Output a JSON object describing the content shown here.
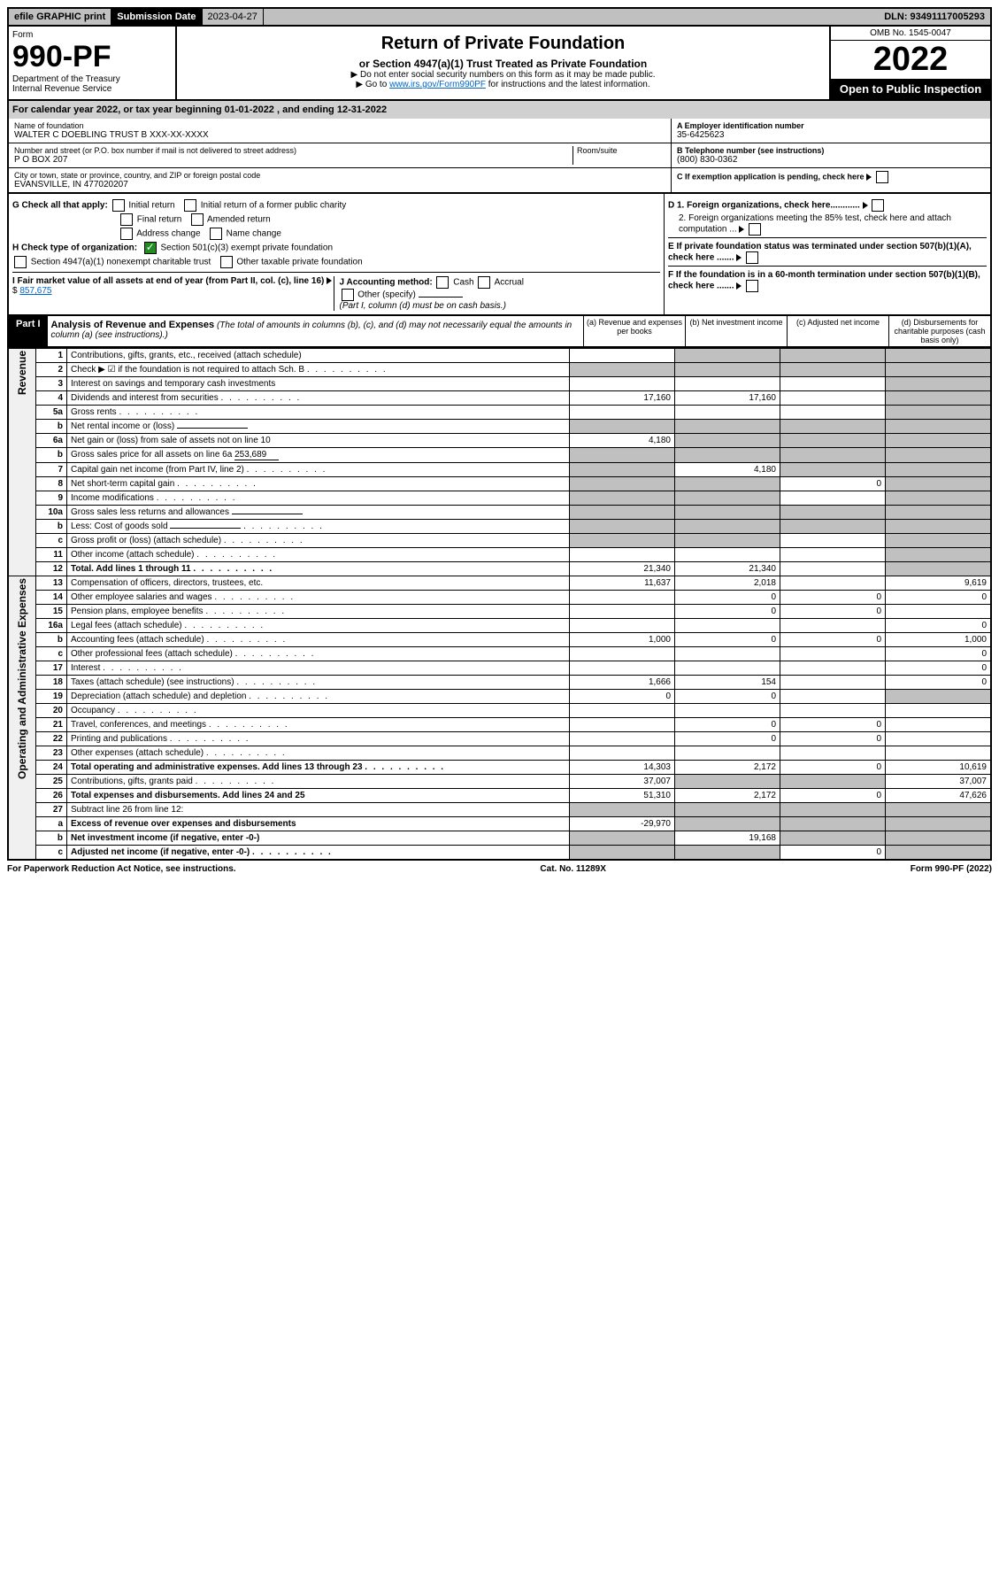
{
  "topbar": {
    "efile": "efile GRAPHIC print",
    "subdate_label": "Submission Date",
    "subdate": "2023-04-27",
    "dln": "DLN: 93491117005293"
  },
  "header": {
    "form_label": "Form",
    "form_no": "990-PF",
    "dept": "Department of the Treasury",
    "irs": "Internal Revenue Service",
    "title": "Return of Private Foundation",
    "subtitle": "or Section 4947(a)(1) Trust Treated as Private Foundation",
    "instr1": "▶ Do not enter social security numbers on this form as it may be made public.",
    "instr2_pre": "▶ Go to ",
    "instr2_link": "www.irs.gov/Form990PF",
    "instr2_post": " for instructions and the latest information.",
    "omb": "OMB No. 1545-0047",
    "year": "2022",
    "open": "Open to Public Inspection"
  },
  "calyear": {
    "text_pre": "For calendar year 2022, or tax year beginning ",
    "begin": "01-01-2022",
    "text_mid": " , and ending ",
    "end": "12-31-2022"
  },
  "info": {
    "name_label": "Name of foundation",
    "name": "WALTER C DOEBLING TRUST B XXX-XX-XXXX",
    "addr_label": "Number and street (or P.O. box number if mail is not delivered to street address)",
    "addr": "P O BOX 207",
    "room_label": "Room/suite",
    "city_label": "City or town, state or province, country, and ZIP or foreign postal code",
    "city": "EVANSVILLE, IN  477020207",
    "ein_label": "A Employer identification number",
    "ein": "35-6425623",
    "tel_label": "B Telephone number (see instructions)",
    "tel": "(800) 830-0362",
    "c_label": "C If exemption application is pending, check here"
  },
  "checks": {
    "g_label": "G Check all that apply:",
    "g_items": [
      "Initial return",
      "Initial return of a former public charity",
      "Final return",
      "Amended return",
      "Address change",
      "Name change"
    ],
    "h_label": "H Check type of organization:",
    "h1": "Section 501(c)(3) exempt private foundation",
    "h2": "Section 4947(a)(1) nonexempt charitable trust",
    "h3": "Other taxable private foundation",
    "i_label": "I Fair market value of all assets at end of year (from Part II, col. (c), line 16)",
    "i_val": "857,675",
    "j_label": "J Accounting method:",
    "j_cash": "Cash",
    "j_accrual": "Accrual",
    "j_other": "Other (specify)",
    "j_note": "(Part I, column (d) must be on cash basis.)",
    "d1": "D 1. Foreign organizations, check here............",
    "d2": "2. Foreign organizations meeting the 85% test, check here and attach computation ...",
    "e": "E If private foundation status was terminated under section 507(b)(1)(A), check here .......",
    "f": "F If the foundation is in a 60-month termination under section 507(b)(1)(B), check here ......."
  },
  "part1": {
    "label": "Part I",
    "title": "Analysis of Revenue and Expenses",
    "note": "(The total of amounts in columns (b), (c), and (d) may not necessarily equal the amounts in column (a) (see instructions).)",
    "cols": {
      "a": "(a) Revenue and expenses per books",
      "b": "(b) Net investment income",
      "c": "(c) Adjusted net income",
      "d": "(d) Disbursements for charitable purposes (cash basis only)"
    }
  },
  "sections": {
    "revenue": "Revenue",
    "operating": "Operating and Administrative Expenses"
  },
  "rows": [
    {
      "n": "1",
      "desc": "Contributions, gifts, grants, etc., received (attach schedule)",
      "a": "",
      "b": "shade",
      "c": "shade",
      "d": "shade"
    },
    {
      "n": "2",
      "desc": "Check ▶ ☑ if the foundation is not required to attach Sch. B",
      "a": "shade",
      "b": "shade",
      "c": "shade",
      "d": "shade",
      "dots": true
    },
    {
      "n": "3",
      "desc": "Interest on savings and temporary cash investments",
      "a": "",
      "b": "",
      "c": "",
      "d": "shade"
    },
    {
      "n": "4",
      "desc": "Dividends and interest from securities",
      "a": "17,160",
      "b": "17,160",
      "c": "",
      "d": "shade",
      "dots": true
    },
    {
      "n": "5a",
      "desc": "Gross rents",
      "a": "",
      "b": "",
      "c": "",
      "d": "shade",
      "dots": true
    },
    {
      "n": "b",
      "desc": "Net rental income or (loss)",
      "a": "shade",
      "b": "shade",
      "c": "shade",
      "d": "shade",
      "inline": true
    },
    {
      "n": "6a",
      "desc": "Net gain or (loss) from sale of assets not on line 10",
      "a": "4,180",
      "b": "shade",
      "c": "shade",
      "d": "shade"
    },
    {
      "n": "b",
      "desc": "Gross sales price for all assets on line 6a",
      "a": "shade",
      "b": "shade",
      "c": "shade",
      "d": "shade",
      "inline_val": "253,689"
    },
    {
      "n": "7",
      "desc": "Capital gain net income (from Part IV, line 2)",
      "a": "shade",
      "b": "4,180",
      "c": "shade",
      "d": "shade",
      "dots": true
    },
    {
      "n": "8",
      "desc": "Net short-term capital gain",
      "a": "shade",
      "b": "shade",
      "c": "0",
      "d": "shade",
      "dots": true
    },
    {
      "n": "9",
      "desc": "Income modifications",
      "a": "shade",
      "b": "shade",
      "c": "",
      "d": "shade",
      "dots": true
    },
    {
      "n": "10a",
      "desc": "Gross sales less returns and allowances",
      "a": "shade",
      "b": "shade",
      "c": "shade",
      "d": "shade",
      "inline": true
    },
    {
      "n": "b",
      "desc": "Less: Cost of goods sold",
      "a": "shade",
      "b": "shade",
      "c": "shade",
      "d": "shade",
      "inline": true,
      "dots": true
    },
    {
      "n": "c",
      "desc": "Gross profit or (loss) (attach schedule)",
      "a": "shade",
      "b": "shade",
      "c": "",
      "d": "shade",
      "dots": true
    },
    {
      "n": "11",
      "desc": "Other income (attach schedule)",
      "a": "",
      "b": "",
      "c": "",
      "d": "shade",
      "dots": true
    },
    {
      "n": "12",
      "desc": "Total. Add lines 1 through 11",
      "a": "21,340",
      "b": "21,340",
      "c": "",
      "d": "shade",
      "bold": true,
      "dots": true
    }
  ],
  "exp_rows": [
    {
      "n": "13",
      "desc": "Compensation of officers, directors, trustees, etc.",
      "a": "11,637",
      "b": "2,018",
      "c": "",
      "d": "9,619"
    },
    {
      "n": "14",
      "desc": "Other employee salaries and wages",
      "a": "",
      "b": "0",
      "c": "0",
      "d": "0",
      "dots": true
    },
    {
      "n": "15",
      "desc": "Pension plans, employee benefits",
      "a": "",
      "b": "0",
      "c": "0",
      "d": "",
      "dots": true
    },
    {
      "n": "16a",
      "desc": "Legal fees (attach schedule)",
      "a": "",
      "b": "",
      "c": "",
      "d": "0",
      "dots": true
    },
    {
      "n": "b",
      "desc": "Accounting fees (attach schedule)",
      "a": "1,000",
      "b": "0",
      "c": "0",
      "d": "1,000",
      "dots": true
    },
    {
      "n": "c",
      "desc": "Other professional fees (attach schedule)",
      "a": "",
      "b": "",
      "c": "",
      "d": "0",
      "dots": true
    },
    {
      "n": "17",
      "desc": "Interest",
      "a": "",
      "b": "",
      "c": "",
      "d": "0",
      "dots": true
    },
    {
      "n": "18",
      "desc": "Taxes (attach schedule) (see instructions)",
      "a": "1,666",
      "b": "154",
      "c": "",
      "d": "0",
      "dots": true
    },
    {
      "n": "19",
      "desc": "Depreciation (attach schedule) and depletion",
      "a": "0",
      "b": "0",
      "c": "",
      "d": "shade",
      "dots": true
    },
    {
      "n": "20",
      "desc": "Occupancy",
      "a": "",
      "b": "",
      "c": "",
      "d": "",
      "dots": true
    },
    {
      "n": "21",
      "desc": "Travel, conferences, and meetings",
      "a": "",
      "b": "0",
      "c": "0",
      "d": "",
      "dots": true
    },
    {
      "n": "22",
      "desc": "Printing and publications",
      "a": "",
      "b": "0",
      "c": "0",
      "d": "",
      "dots": true
    },
    {
      "n": "23",
      "desc": "Other expenses (attach schedule)",
      "a": "",
      "b": "",
      "c": "",
      "d": "",
      "dots": true
    },
    {
      "n": "24",
      "desc": "Total operating and administrative expenses. Add lines 13 through 23",
      "a": "14,303",
      "b": "2,172",
      "c": "0",
      "d": "10,619",
      "bold": true,
      "dots": true
    },
    {
      "n": "25",
      "desc": "Contributions, gifts, grants paid",
      "a": "37,007",
      "b": "shade",
      "c": "shade",
      "d": "37,007",
      "dots": true
    },
    {
      "n": "26",
      "desc": "Total expenses and disbursements. Add lines 24 and 25",
      "a": "51,310",
      "b": "2,172",
      "c": "0",
      "d": "47,626",
      "bold": true
    },
    {
      "n": "27",
      "desc": "Subtract line 26 from line 12:",
      "a": "shade",
      "b": "shade",
      "c": "shade",
      "d": "shade"
    },
    {
      "n": "a",
      "desc": "Excess of revenue over expenses and disbursements",
      "a": "-29,970",
      "b": "shade",
      "c": "shade",
      "d": "shade",
      "bold": true
    },
    {
      "n": "b",
      "desc": "Net investment income (if negative, enter -0-)",
      "a": "shade",
      "b": "19,168",
      "c": "shade",
      "d": "shade",
      "bold": true
    },
    {
      "n": "c",
      "desc": "Adjusted net income (if negative, enter -0-)",
      "a": "shade",
      "b": "shade",
      "c": "0",
      "d": "shade",
      "bold": true,
      "dots": true
    }
  ],
  "footer": {
    "left": "For Paperwork Reduction Act Notice, see instructions.",
    "mid": "Cat. No. 11289X",
    "right": "Form 990-PF (2022)"
  }
}
